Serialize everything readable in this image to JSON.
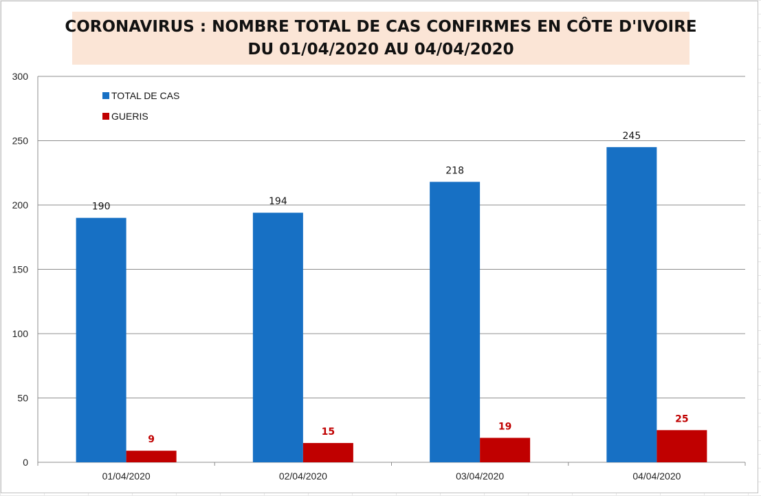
{
  "chart_data": {
    "type": "bar",
    "title": "CORONAVIRUS : NOMBRE TOTAL DE CAS CONFIRMES EN CÔTE D'IVOIRE",
    "subtitle": "DU 01/04/2020  AU 04/04/2020",
    "categories": [
      "01/04/2020",
      "02/04/2020",
      "03/04/2020",
      "04/04/2020"
    ],
    "series": [
      {
        "name": "TOTAL DE CAS",
        "color": "#1770c4",
        "label_color": "#111111",
        "values": [
          190,
          194,
          218,
          245
        ]
      },
      {
        "name": "GUERIS",
        "color": "#c00000",
        "label_color": "#c00000",
        "values": [
          9,
          15,
          19,
          25
        ]
      }
    ],
    "ylim": [
      0,
      300
    ],
    "yticks": [
      0,
      50,
      100,
      150,
      200,
      250,
      300
    ],
    "grid": true,
    "legend_position": "top-left",
    "xlabel": "",
    "ylabel": ""
  }
}
